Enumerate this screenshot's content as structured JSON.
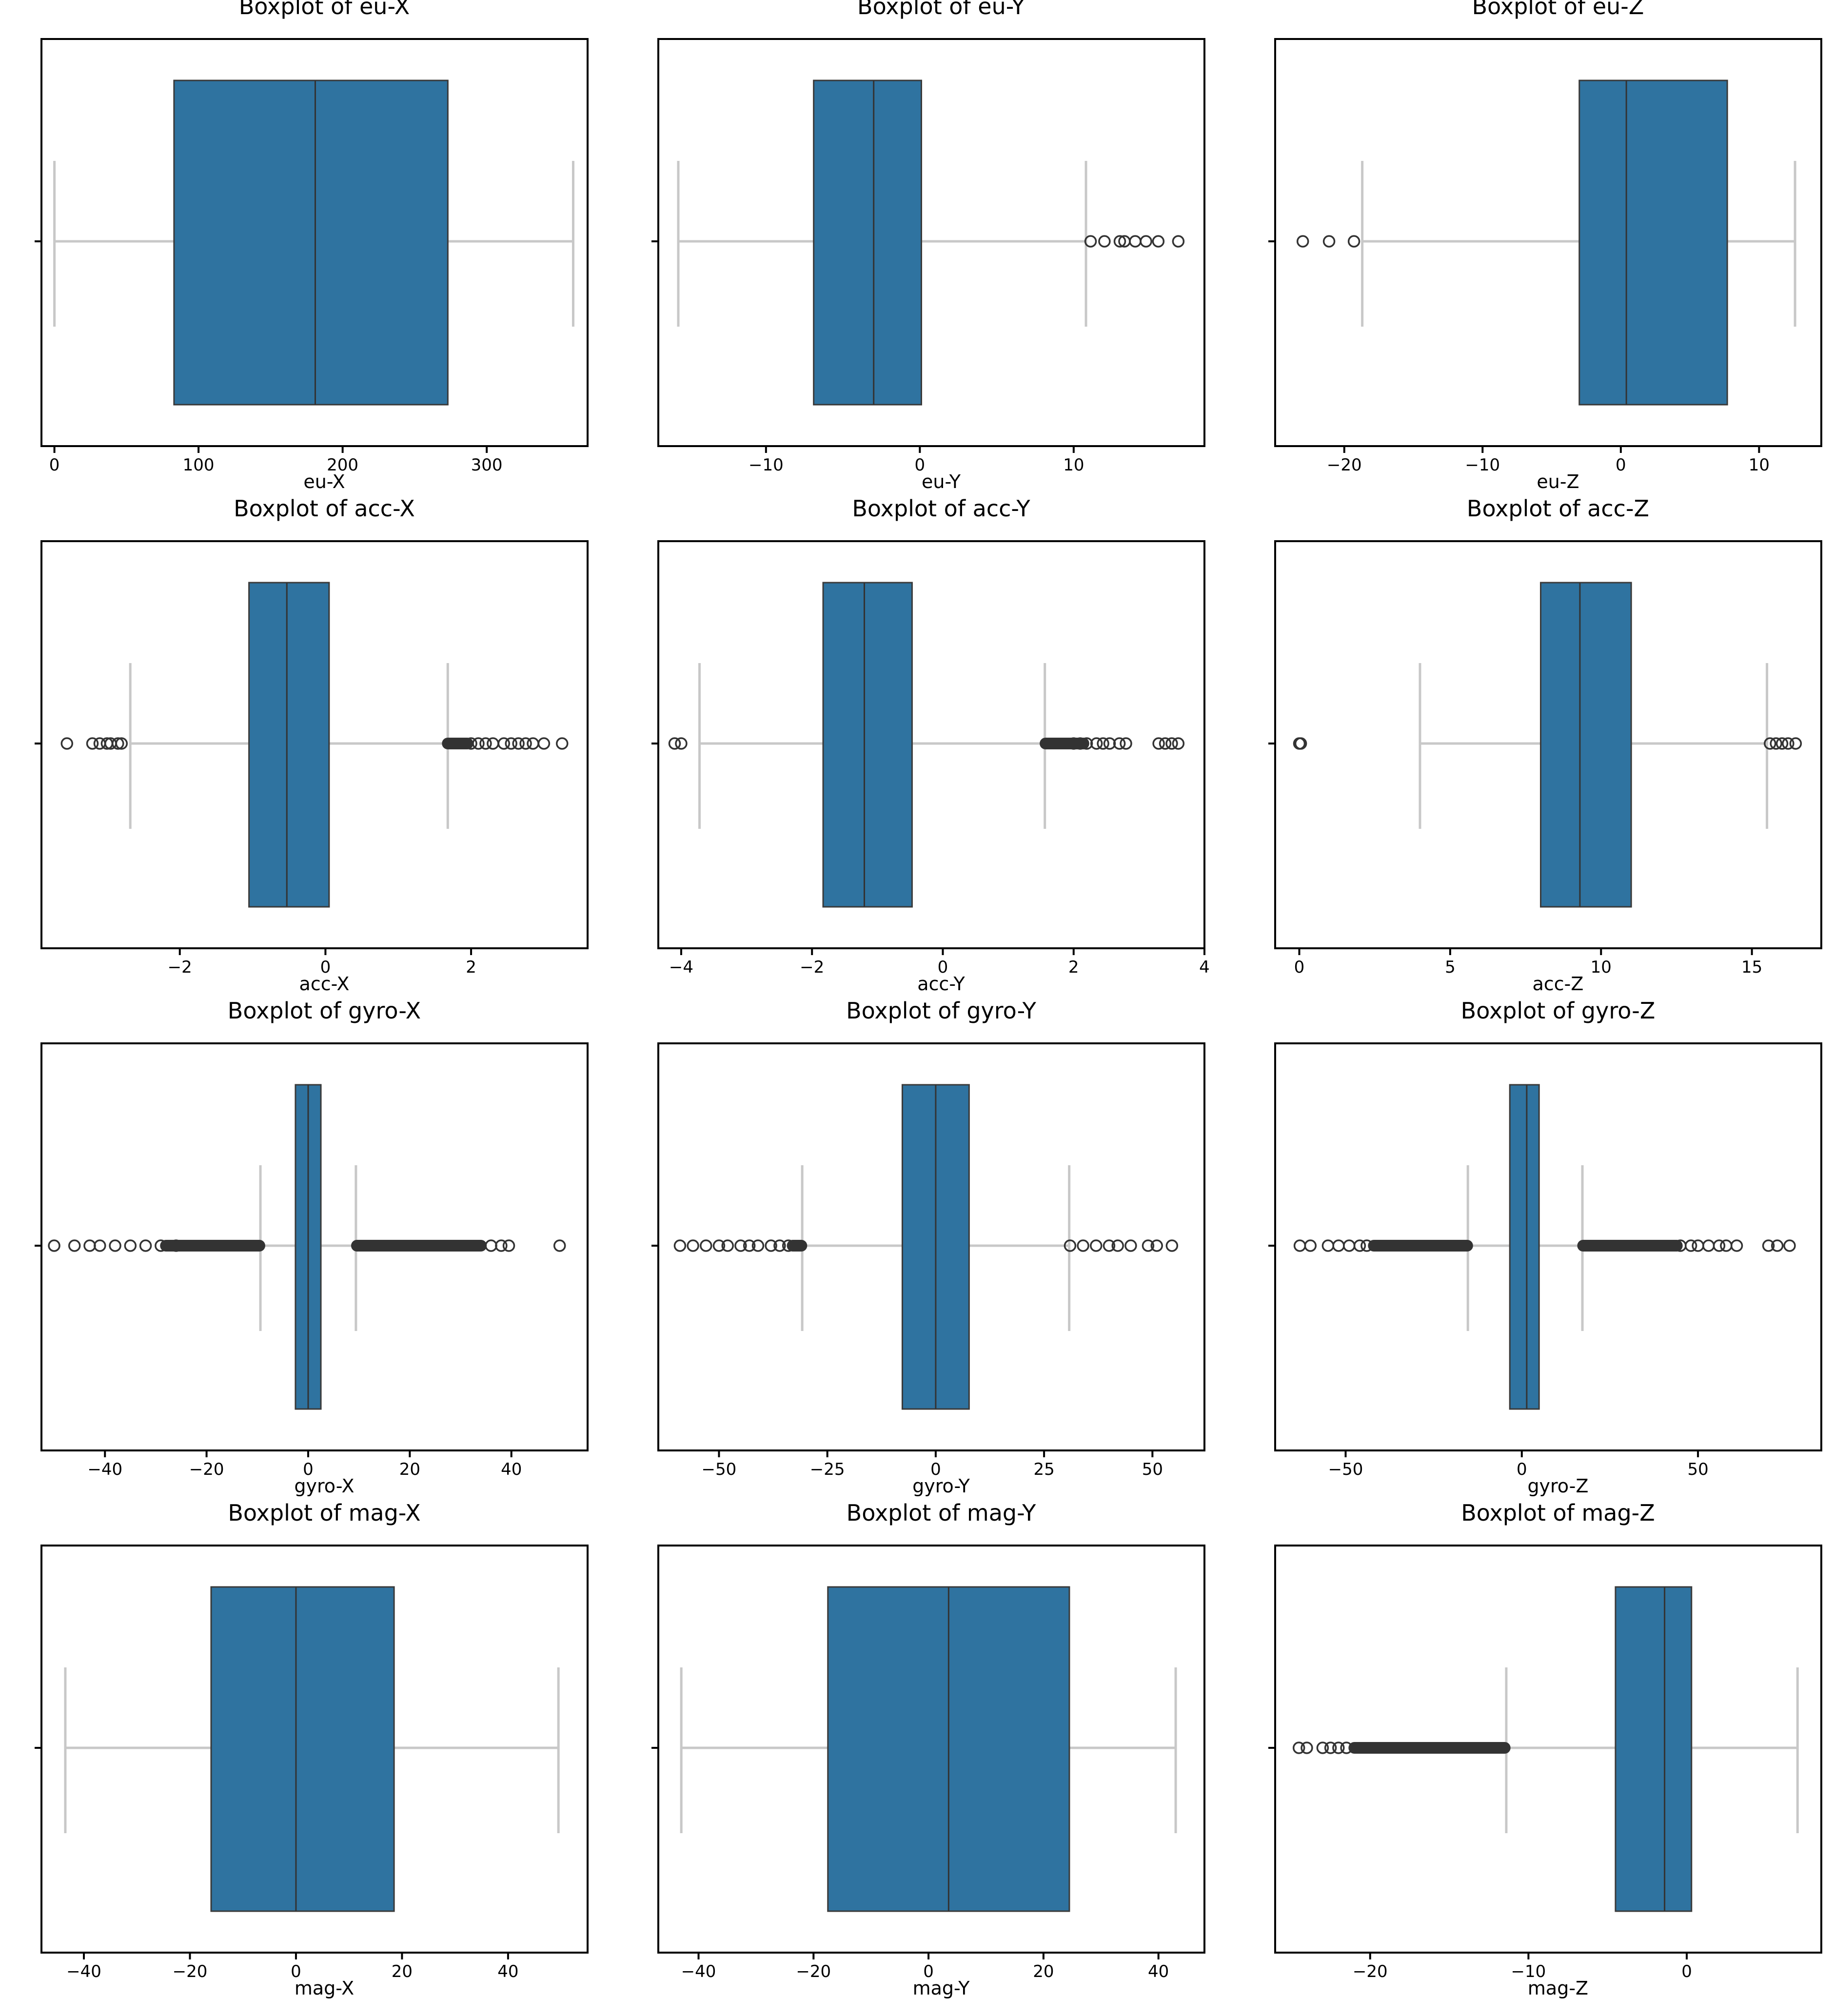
{
  "chart_data": [
    {
      "type": "boxplot",
      "title": "Boxplot of eu-X",
      "xlabel": "eu-X",
      "xlim": [
        -9,
        370
      ],
      "ticks": [
        0,
        100,
        200,
        300
      ],
      "q1": 83,
      "median": 181,
      "q3": 273,
      "whisker_low": 0,
      "whisker_high": 360,
      "outliers": [],
      "outlier_clusters": []
    },
    {
      "type": "boxplot",
      "title": "Boxplot of eu-Y",
      "xlabel": "eu-Y",
      "xlim": [
        -17,
        18.5
      ],
      "ticks": [
        -10,
        0,
        10
      ],
      "q1": -6.9,
      "median": -3,
      "q3": 0.1,
      "whisker_low": -15.7,
      "whisker_high": 10.8,
      "outliers": [
        11.1,
        12,
        13,
        13.3,
        14,
        14.7,
        15.5,
        16.8
      ],
      "outlier_clusters": []
    },
    {
      "type": "boxplot",
      "title": "Boxplot of eu-Z",
      "xlabel": "eu-Z",
      "xlim": [
        -25,
        14.5
      ],
      "ticks": [
        -20,
        -10,
        0,
        10
      ],
      "q1": -3,
      "median": 0.4,
      "q3": 7.7,
      "whisker_low": -18.7,
      "whisker_high": 12.6,
      "outliers": [
        -23,
        -21.1,
        -19.3
      ],
      "outlier_clusters": []
    },
    {
      "type": "boxplot",
      "title": "Boxplot of acc-X",
      "xlabel": "acc-X",
      "xlim": [
        -3.9,
        3.6
      ],
      "ticks": [
        -2,
        0,
        2
      ],
      "q1": -1.05,
      "median": -0.53,
      "q3": 0.05,
      "whisker_low": -2.68,
      "whisker_high": 1.68,
      "outliers": [
        -3.55,
        -3.2,
        -3.1,
        -3.0,
        -2.95,
        -2.85,
        -2.8,
        2.0,
        2.1,
        2.2,
        2.3,
        2.45,
        2.55,
        2.65,
        2.75,
        2.85,
        3.0,
        3.25
      ],
      "outlier_clusters": [
        [
          1.68,
          1.95
        ]
      ]
    },
    {
      "type": "boxplot",
      "title": "Boxplot of acc-Y",
      "xlabel": "acc-Y",
      "xlim": [
        -4.35,
        4
      ],
      "ticks": [
        -4,
        -2,
        0,
        2,
        4
      ],
      "q1": -1.83,
      "median": -1.2,
      "q3": -0.47,
      "whisker_low": -3.72,
      "whisker_high": 1.56,
      "outliers": [
        -4.0,
        -4.1,
        2.0,
        2.1,
        2.2,
        2.35,
        2.45,
        2.55,
        2.7,
        2.8,
        3.3,
        3.4,
        3.5,
        3.6
      ],
      "outlier_clusters": [
        [
          1.57,
          2.15
        ]
      ]
    },
    {
      "type": "boxplot",
      "title": "Boxplot of acc-Z",
      "xlabel": "acc-Z",
      "xlim": [
        -0.8,
        17.3
      ],
      "ticks": [
        0,
        5,
        10,
        15
      ],
      "q1": 8,
      "median": 9.3,
      "q3": 11,
      "whisker_low": 4,
      "whisker_high": 15.5,
      "outliers": [
        0,
        0.05,
        15.6,
        15.8,
        16.0,
        16.2,
        16.45
      ],
      "outlier_clusters": []
    },
    {
      "type": "boxplot",
      "title": "Boxplot of gyro-X",
      "xlabel": "gyro-X",
      "xlim": [
        -52.5,
        55
      ],
      "ticks": [
        -40,
        -20,
        0,
        20,
        40
      ],
      "q1": -2.5,
      "median": 0,
      "q3": 2.5,
      "whisker_low": -9.4,
      "whisker_high": 9.4,
      "outliers": [
        -50,
        -46,
        -43,
        -41,
        -38,
        -35,
        -32,
        -29,
        -26,
        36,
        38,
        39.5,
        49.5
      ],
      "outlier_clusters": [
        [
          -28,
          -9.6
        ],
        [
          9.6,
          34
        ]
      ]
    },
    {
      "type": "boxplot",
      "title": "Boxplot of gyro-Y",
      "xlabel": "gyro-Y",
      "xlim": [
        -64,
        62
      ],
      "ticks": [
        -50,
        -25,
        0,
        25,
        50
      ],
      "q1": -7.7,
      "median": 0,
      "q3": 7.7,
      "whisker_low": -30.8,
      "whisker_high": 30.8,
      "outliers": [
        -59,
        -56,
        -53,
        -50,
        -48,
        -45,
        -43,
        -41,
        -38,
        -36,
        -34,
        31,
        34,
        37,
        40,
        42,
        45,
        49,
        51,
        54.5
      ],
      "outlier_clusters": [
        [
          -33,
          -31
        ]
      ]
    },
    {
      "type": "boxplot",
      "title": "Boxplot of gyro-Z",
      "xlabel": "gyro-Z",
      "xlim": [
        -70,
        85
      ],
      "ticks": [
        -50,
        0,
        50
      ],
      "q1": -3.4,
      "median": 1.4,
      "q3": 4.9,
      "whisker_low": -15.3,
      "whisker_high": 17.2,
      "outliers": [
        -63,
        -60,
        -55,
        -52,
        -49,
        -46,
        -44,
        45,
        48,
        50,
        53,
        56,
        58,
        61,
        70,
        72.5,
        76
      ],
      "outlier_clusters": [
        [
          -42,
          -15.5
        ],
        [
          17.4,
          44
        ]
      ]
    },
    {
      "type": "boxplot",
      "title": "Boxplot of mag-X",
      "xlabel": "mag-X",
      "xlim": [
        -48,
        55
      ],
      "ticks": [
        -40,
        -20,
        0,
        20,
        40
      ],
      "q1": -16,
      "median": 0,
      "q3": 18.5,
      "whisker_low": -43.5,
      "whisker_high": 49.5,
      "outliers": [],
      "outlier_clusters": []
    },
    {
      "type": "boxplot",
      "title": "Boxplot of mag-Y",
      "xlabel": "mag-Y",
      "xlim": [
        -47,
        48
      ],
      "ticks": [
        -40,
        -20,
        0,
        20,
        40
      ],
      "q1": -17.5,
      "median": 3.5,
      "q3": 24.5,
      "whisker_low": -43,
      "whisker_high": 43,
      "outliers": [],
      "outlier_clusters": []
    },
    {
      "type": "boxplot",
      "title": "Boxplot of mag-Z",
      "xlabel": "mag-Z",
      "xlim": [
        -26,
        8.5
      ],
      "ticks": [
        -20,
        -10,
        0
      ],
      "q1": -4.5,
      "median": -1.4,
      "q3": 0.3,
      "whisker_low": -11.4,
      "whisker_high": 7,
      "outliers": [
        -24.5,
        -24,
        -23,
        -22.5,
        -22,
        -21.5
      ],
      "outlier_clusters": [
        [
          -21,
          -11.5
        ]
      ]
    }
  ],
  "colors": {
    "box": "#2f73a0",
    "whisker": "#c8c8c8",
    "median": "#333333",
    "outlier": "#333333"
  }
}
